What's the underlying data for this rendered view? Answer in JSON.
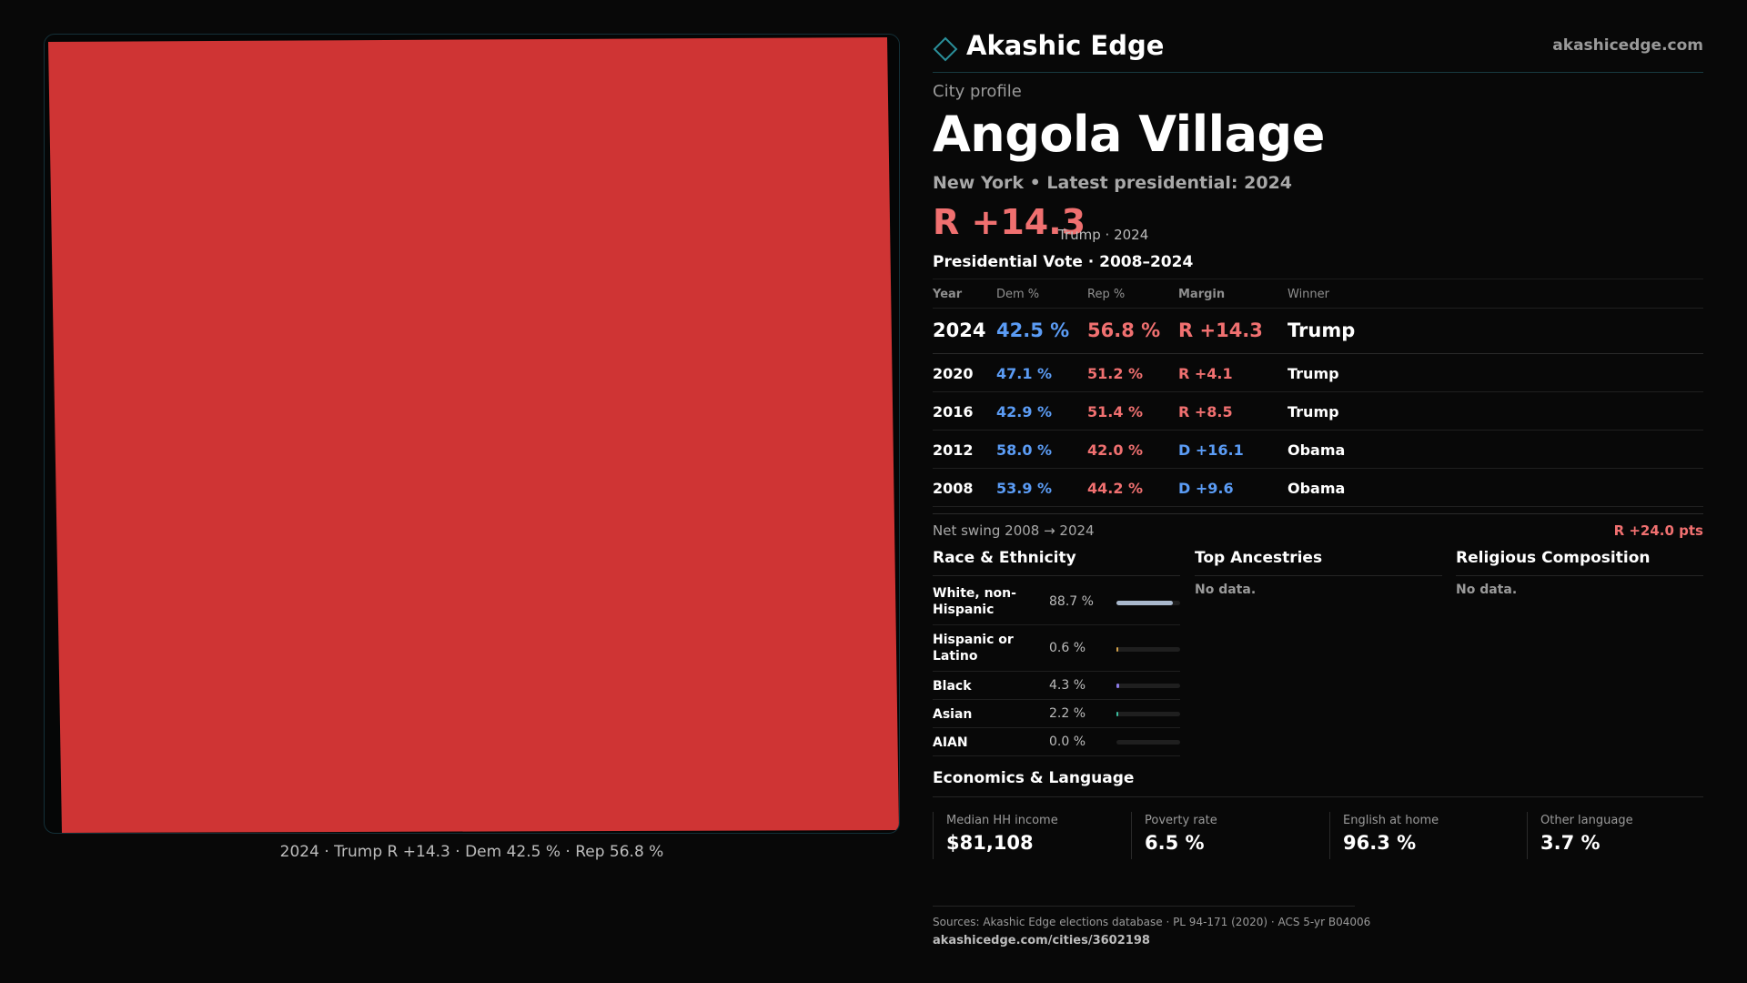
{
  "map": {
    "fill_color": "#cf3434",
    "caption": "2024 · Trump R +14.3 · Dem 42.5 % · Rep 56.8 %"
  },
  "header": {
    "brand": "Akashic Edge",
    "logo_icon": "diamond-outline-icon",
    "site_url": "akashicedge.com"
  },
  "profile": {
    "page_label": "City profile",
    "city_name": "Angola Village",
    "subtitle": "New York • Latest presidential: 2024",
    "headline_margin": "R +14.3",
    "headline_note": "Trump · 2024"
  },
  "vote": {
    "title": "Presidential Vote · 2008–2024",
    "columns": [
      "Year",
      "Dem %",
      "Rep %",
      "Margin",
      "Winner"
    ],
    "rows": [
      {
        "year": "2024",
        "dem": "42.5 %",
        "rep": "56.8 %",
        "margin": "R +14.3",
        "winner": "Trump",
        "party": "R"
      },
      {
        "year": "2020",
        "dem": "47.1 %",
        "rep": "51.2 %",
        "margin": "R +4.1",
        "winner": "Trump",
        "party": "R"
      },
      {
        "year": "2016",
        "dem": "42.9 %",
        "rep": "51.4 %",
        "margin": "R +8.5",
        "winner": "Trump",
        "party": "R"
      },
      {
        "year": "2012",
        "dem": "58.0 %",
        "rep": "42.0 %",
        "margin": "D +16.1",
        "winner": "Obama",
        "party": "D"
      },
      {
        "year": "2008",
        "dem": "53.9 %",
        "rep": "44.2 %",
        "margin": "D +9.6",
        "winner": "Obama",
        "party": "D"
      }
    ],
    "swing_label": "Net swing 2008 → 2024",
    "swing_value": "R +24.0 pts"
  },
  "race": {
    "title": "Race & Ethnicity",
    "items": [
      {
        "label": "White, non-Hispanic",
        "pct": "88.7 %",
        "value": 88.7,
        "color": "#a9b8cc"
      },
      {
        "label": "Hispanic or Latino",
        "pct": "0.6 %",
        "value": 0.6,
        "color": "#d4a24a"
      },
      {
        "label": "Black",
        "pct": "4.3 %",
        "value": 4.3,
        "color": "#8c7ae6"
      },
      {
        "label": "Asian",
        "pct": "2.2 %",
        "value": 2.2,
        "color": "#3bbfa0"
      },
      {
        "label": "AIAN",
        "pct": "0.0 %",
        "value": 0.0,
        "color": "#c07a4a"
      }
    ]
  },
  "ancestries": {
    "title": "Top Ancestries",
    "empty": "No data."
  },
  "religion": {
    "title": "Religious Composition",
    "empty": "No data."
  },
  "economics": {
    "title": "Economics & Language",
    "cards": [
      {
        "label": "Median HH income",
        "value": "$81,108"
      },
      {
        "label": "Poverty rate",
        "value": "6.5 %"
      },
      {
        "label": "English at home",
        "value": "96.3 %"
      },
      {
        "label": "Other language",
        "value": "3.7 %"
      }
    ]
  },
  "footer": {
    "sources": "Sources: Akashic Edge elections database · PL 94-171 (2020) · ACS 5-yr B04006",
    "url": "akashicedge.com/cities/3602198"
  },
  "colors": {
    "dem": "#5b9cf5",
    "rep": "#f07070",
    "background": "#080808",
    "accent": "#2a8f9a"
  }
}
